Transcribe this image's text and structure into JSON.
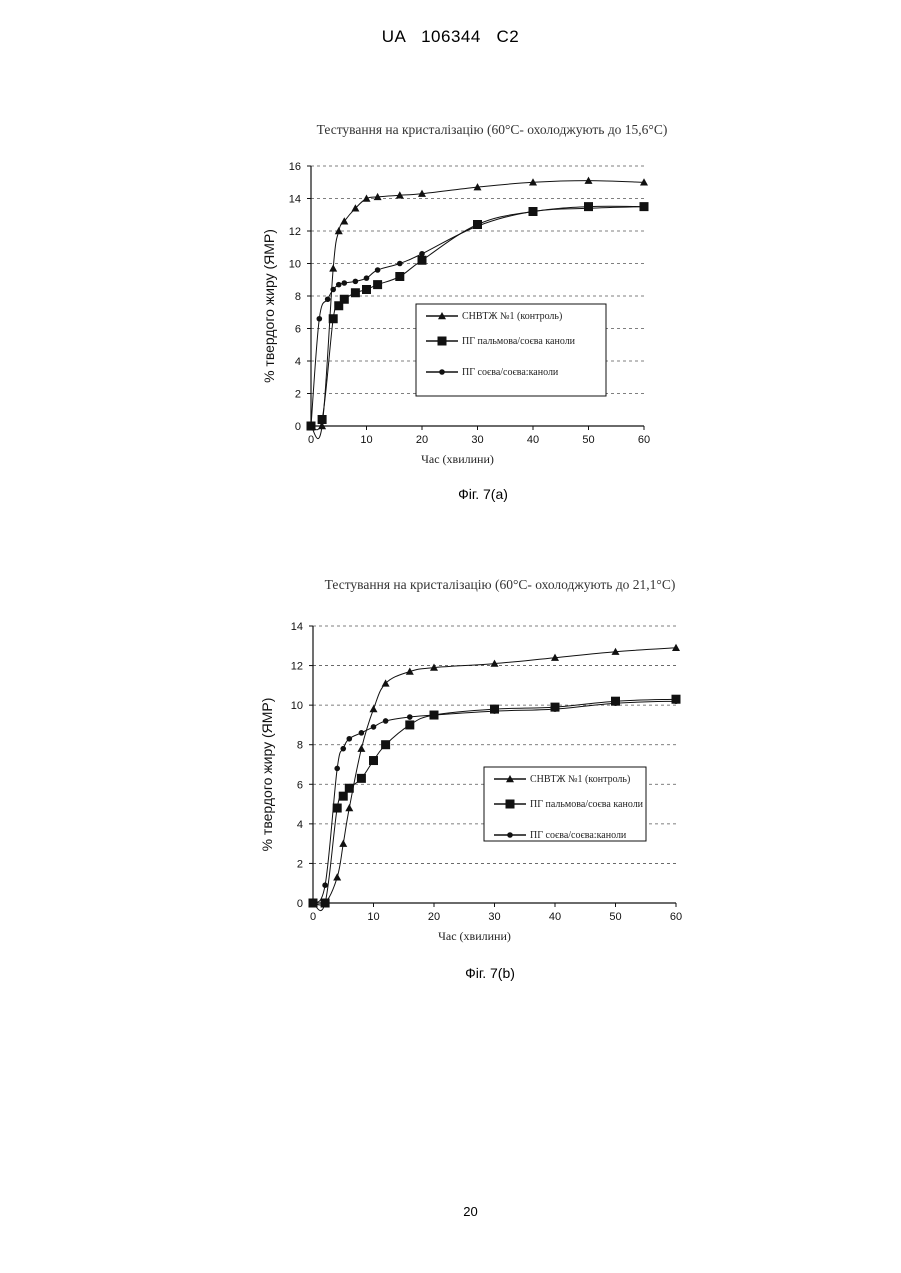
{
  "page": {
    "header": "UA   106344   C2",
    "page_number": "20"
  },
  "chart_data": [
    {
      "type": "line",
      "title": "Тестування на кристалізацію (60°C- охолоджують до 15,6°C)",
      "xlabel": "Час (хвилини)",
      "ylabel": "% твердого жиру (ЯМР)",
      "caption": "Фіг. 7(а)",
      "xlim": [
        0,
        60
      ],
      "ylim": [
        0,
        16
      ],
      "xticks": [
        0,
        10,
        20,
        30,
        40,
        50,
        60
      ],
      "yticks": [
        0,
        2,
        4,
        6,
        8,
        10,
        12,
        14,
        16
      ],
      "grid": "horizontal dashed",
      "legend_position": "middle-right",
      "series": [
        {
          "name": "СНВТЖ №1 (контроль)",
          "marker": "triangle",
          "x": [
            0,
            2,
            4,
            5,
            6,
            8,
            10,
            12,
            16,
            20,
            30,
            40,
            50,
            60
          ],
          "y": [
            0,
            0,
            9.7,
            12,
            12.6,
            13.4,
            14,
            14.1,
            14.2,
            14.3,
            14.7,
            15,
            15.1,
            15
          ]
        },
        {
          "name": "ПГ пальмова/соєва каноли",
          "marker": "square",
          "x": [
            0,
            2,
            4,
            5,
            6,
            8,
            10,
            12,
            16,
            20,
            30,
            40,
            50,
            60
          ],
          "y": [
            0,
            0.4,
            6.6,
            7.4,
            7.8,
            8.2,
            8.4,
            8.7,
            9.2,
            10.2,
            12.4,
            13.2,
            13.5,
            13.5
          ]
        },
        {
          "name": "ПГ соєва/соєва:каноли",
          "marker": "dot",
          "x": [
            0,
            1.5,
            3,
            4,
            5,
            6,
            8,
            10,
            12,
            16,
            20,
            30,
            40,
            50,
            60
          ],
          "y": [
            0,
            6.6,
            7.8,
            8.4,
            8.7,
            8.8,
            8.9,
            9.1,
            9.6,
            10,
            10.6,
            12.3,
            13.2,
            13.4,
            13.5
          ]
        }
      ]
    },
    {
      "type": "line",
      "title": "Тестування на кристалізацію (60°C- охолоджують до 21,1°C)",
      "xlabel": "Час (хвилини)",
      "ylabel": "% твердого жиру (ЯМР)",
      "caption": "Фіг. 7(b)",
      "xlim": [
        0,
        60
      ],
      "ylim": [
        0,
        14
      ],
      "xticks": [
        0,
        10,
        20,
        30,
        40,
        50,
        60
      ],
      "yticks": [
        0,
        2,
        4,
        6,
        8,
        10,
        12,
        14
      ],
      "grid": "horizontal dashed",
      "legend_position": "middle-right",
      "series": [
        {
          "name": "СНВТЖ №1 (контроль)",
          "marker": "triangle",
          "x": [
            0,
            2,
            4,
            5,
            6,
            8,
            10,
            12,
            16,
            20,
            30,
            40,
            50,
            60
          ],
          "y": [
            0,
            0,
            1.3,
            3,
            4.8,
            7.8,
            9.8,
            11.1,
            11.7,
            11.9,
            12.1,
            12.4,
            12.7,
            12.9
          ]
        },
        {
          "name": "ПГ пальмова/соєва каноли",
          "marker": "square",
          "x": [
            0,
            2,
            4,
            5,
            6,
            8,
            10,
            12,
            16,
            20,
            30,
            40,
            50,
            60
          ],
          "y": [
            0,
            0,
            4.8,
            5.4,
            5.8,
            6.3,
            7.2,
            8,
            9,
            9.5,
            9.8,
            9.9,
            10.2,
            10.3
          ]
        },
        {
          "name": "ПГ соєва/соєва:каноли",
          "marker": "dot",
          "x": [
            0,
            2,
            4,
            5,
            6,
            8,
            10,
            12,
            16,
            20,
            30,
            40,
            50,
            60
          ],
          "y": [
            0,
            0.9,
            6.8,
            7.8,
            8.3,
            8.6,
            8.9,
            9.2,
            9.4,
            9.5,
            9.7,
            9.8,
            10.1,
            10.2
          ]
        }
      ]
    }
  ]
}
